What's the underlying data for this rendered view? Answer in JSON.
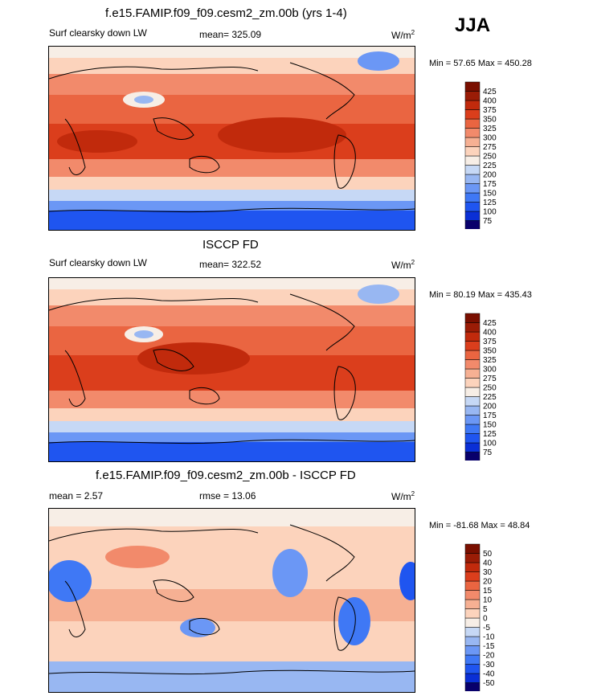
{
  "header": {
    "season": "JJA"
  },
  "panels": [
    {
      "title": "f.e15.FAMIP.f09_f09.cesm2_zm.00b (yrs 1-4)",
      "left_label": "Surf clearsky down LW",
      "center_label": "mean= 325.09",
      "units": "W/m",
      "units_sup": "2",
      "minmax": "Min =  57.65 Max = 450.28"
    },
    {
      "title": "ISCCP FD",
      "left_label": "Surf clearsky down LW",
      "center_label": "mean= 322.52",
      "units": "W/m",
      "units_sup": "2",
      "minmax": "Min =  80.19 Max = 435.43"
    },
    {
      "title": "f.e15.FAMIP.f09_f09.cesm2_zm.00b - ISCCP FD",
      "left_label": "mean =   2.57",
      "center_label": "rmse =  13.06",
      "units": "W/m",
      "units_sup": "2",
      "minmax": "Min = -81.68 Max =  48.84"
    }
  ],
  "chart_data": [
    {
      "type": "heatmap",
      "title": "f.e15.FAMIP.f09_f09.cesm2_zm.00b (yrs 1-4)",
      "variable": "Surf clearsky down LW",
      "units": "W/m^2",
      "mean": 325.09,
      "min": 57.65,
      "max": 450.28,
      "colorbar_levels": [
        75,
        100,
        125,
        150,
        175,
        200,
        225,
        250,
        275,
        300,
        325,
        350,
        375,
        400,
        425
      ],
      "colors": [
        "#08006b",
        "#0a2fd6",
        "#1f55f0",
        "#3f78f5",
        "#6b97f5",
        "#98b7f2",
        "#c6d8f5",
        "#f7eee6",
        "#fcd3bc",
        "#f6b093",
        "#f28a6b",
        "#ea6541",
        "#db3e1c",
        "#c12a0c",
        "#9a1c06",
        "#7a0f00"
      ]
    },
    {
      "type": "heatmap",
      "title": "ISCCP FD",
      "variable": "Surf clearsky down LW",
      "units": "W/m^2",
      "mean": 322.52,
      "min": 80.19,
      "max": 435.43,
      "colorbar_levels": [
        75,
        100,
        125,
        150,
        175,
        200,
        225,
        250,
        275,
        300,
        325,
        350,
        375,
        400,
        425
      ],
      "colors": [
        "#08006b",
        "#0a2fd6",
        "#1f55f0",
        "#3f78f5",
        "#6b97f5",
        "#98b7f2",
        "#c6d8f5",
        "#f7eee6",
        "#fcd3bc",
        "#f6b093",
        "#f28a6b",
        "#ea6541",
        "#db3e1c",
        "#c12a0c",
        "#9a1c06",
        "#7a0f00"
      ]
    },
    {
      "type": "heatmap",
      "title": "f.e15.FAMIP.f09_f09.cesm2_zm.00b - ISCCP FD",
      "mean": 2.57,
      "rmse": 13.06,
      "units": "W/m^2",
      "min": -81.68,
      "max": 48.84,
      "colorbar_levels": [
        -50,
        -40,
        -30,
        -20,
        -15,
        -10,
        -5,
        0,
        5,
        10,
        15,
        20,
        30,
        40,
        50
      ],
      "colors": [
        "#08006b",
        "#0a2fd6",
        "#1f55f0",
        "#3f78f5",
        "#6b97f5",
        "#98b7f2",
        "#c6d8f5",
        "#f7eee6",
        "#fcd3bc",
        "#f6b093",
        "#f28a6b",
        "#ea6541",
        "#db3e1c",
        "#c12a0c",
        "#9a1c06",
        "#7a0f00"
      ]
    }
  ]
}
